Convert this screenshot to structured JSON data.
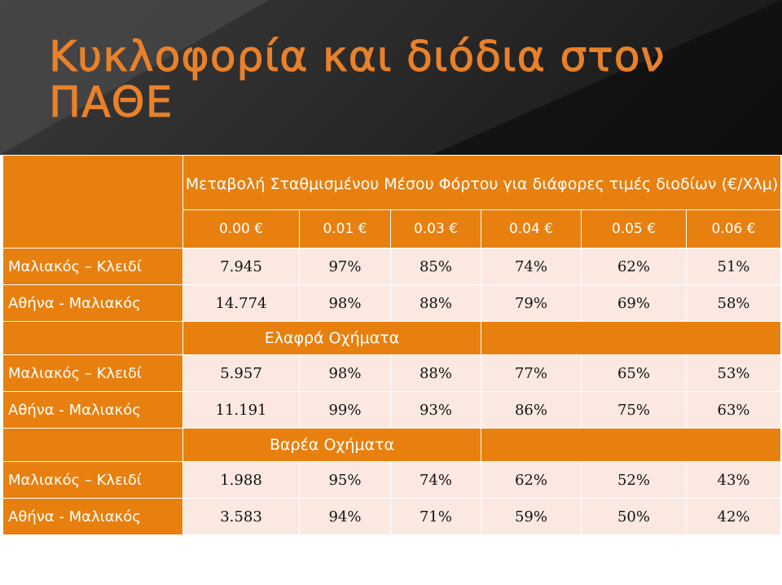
{
  "slide": {
    "title": "Κυκλοφορία και διόδια στον ΠΑΘΕ"
  },
  "table": {
    "heading": "Μεταβολή Σταθμισμένου Μέσου Φόρτου για διάφορες τιμές διοδίων (€/Χλμ)",
    "prices": [
      "0.00 €",
      "0.01 €",
      "0.03 €",
      "0.04 €",
      "0.05 €",
      "0.06 €"
    ],
    "groups": [
      {
        "label": "",
        "rows": [
          {
            "name": "Μαλιακός – Κλειδί",
            "values": [
              "7.945",
              "97%",
              "85%",
              "74%",
              "62%",
              "51%"
            ]
          },
          {
            "name": "Αθήνα - Μαλιακός",
            "values": [
              "14.774",
              "98%",
              "88%",
              "79%",
              "69%",
              "58%"
            ]
          }
        ]
      },
      {
        "label": "Ελαφρά Οχήματα",
        "rows": [
          {
            "name": "Μαλιακός – Κλειδί",
            "values": [
              "5.957",
              "98%",
              "88%",
              "77%",
              "65%",
              "53%"
            ]
          },
          {
            "name": "Αθήνα - Μαλιακός",
            "values": [
              "11.191",
              "99%",
              "93%",
              "86%",
              "75%",
              "63%"
            ]
          }
        ]
      },
      {
        "label": "Βαρέα Οχήματα",
        "rows": [
          {
            "name": "Μαλιακός – Κλειδί",
            "values": [
              "1.988",
              "95%",
              "74%",
              "62%",
              "52%",
              "43%"
            ]
          },
          {
            "name": "Αθήνα - Μαλιακός",
            "values": [
              "3.583",
              "94%",
              "71%",
              "59%",
              "50%",
              "42%"
            ]
          }
        ]
      }
    ]
  },
  "colors": {
    "accent": "#e8800f",
    "row_bg": "#fbe9e1",
    "header_bg": "#2b2b2b"
  }
}
